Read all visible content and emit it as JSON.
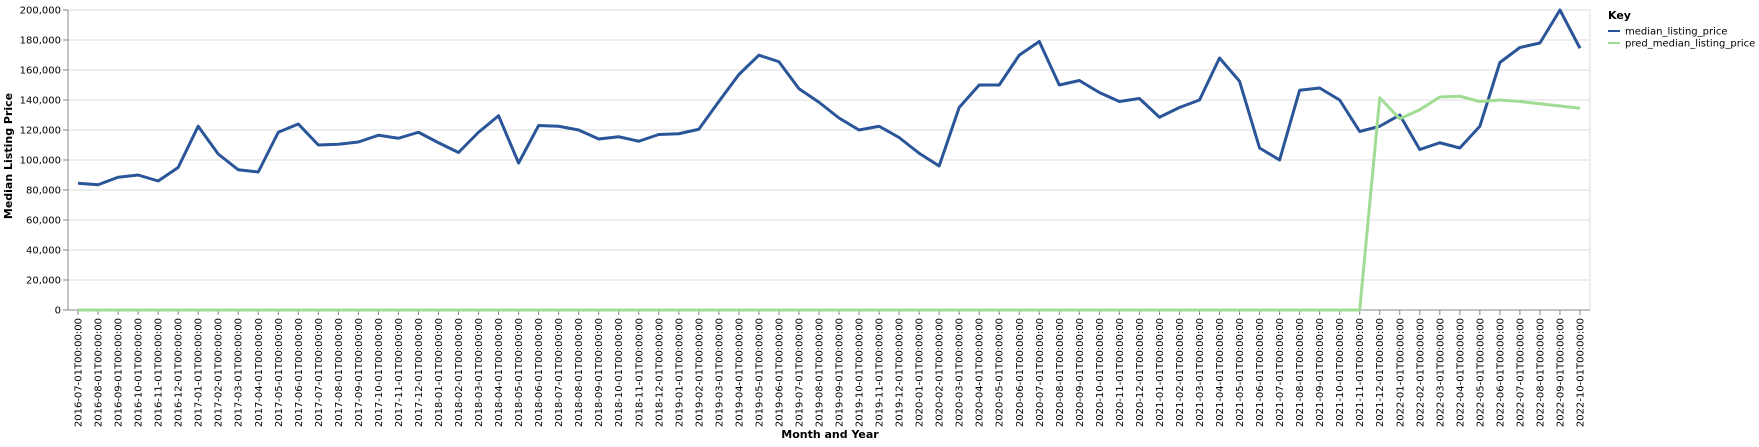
{
  "chart_data": {
    "type": "line",
    "xlabel": "Month and Year",
    "ylabel": "Median Listing Price",
    "ylim": [
      0,
      200000
    ],
    "y_ticks": [
      "0",
      "20,000",
      "40,000",
      "60,000",
      "80,000",
      "100,000",
      "120,000",
      "140,000",
      "160,000",
      "180,000",
      "200,000"
    ],
    "grid": true,
    "legend": {
      "title": "Key",
      "position": "top-right"
    },
    "categories": [
      "2016-07-01T00:00:00",
      "2016-08-01T00:00:00",
      "2016-09-01T00:00:00",
      "2016-10-01T00:00:00",
      "2016-11-01T00:00:00",
      "2016-12-01T00:00:00",
      "2017-01-01T00:00:00",
      "2017-02-01T00:00:00",
      "2017-03-01T00:00:00",
      "2017-04-01T00:00:00",
      "2017-05-01T00:00:00",
      "2017-06-01T00:00:00",
      "2017-07-01T00:00:00",
      "2017-08-01T00:00:00",
      "2017-09-01T00:00:00",
      "2017-10-01T00:00:00",
      "2017-11-01T00:00:00",
      "2017-12-01T00:00:00",
      "2018-01-01T00:00:00",
      "2018-02-01T00:00:00",
      "2018-03-01T00:00:00",
      "2018-04-01T00:00:00",
      "2018-05-01T00:00:00",
      "2018-06-01T00:00:00",
      "2018-07-01T00:00:00",
      "2018-08-01T00:00:00",
      "2018-09-01T00:00:00",
      "2018-10-01T00:00:00",
      "2018-11-01T00:00:00",
      "2018-12-01T00:00:00",
      "2019-01-01T00:00:00",
      "2019-02-01T00:00:00",
      "2019-03-01T00:00:00",
      "2019-04-01T00:00:00",
      "2019-05-01T00:00:00",
      "2019-06-01T00:00:00",
      "2019-07-01T00:00:00",
      "2019-08-01T00:00:00",
      "2019-09-01T00:00:00",
      "2019-10-01T00:00:00",
      "2019-11-01T00:00:00",
      "2019-12-01T00:00:00",
      "2020-01-01T00:00:00",
      "2020-02-01T00:00:00",
      "2020-03-01T00:00:00",
      "2020-04-01T00:00:00",
      "2020-05-01T00:00:00",
      "2020-06-01T00:00:00",
      "2020-07-01T00:00:00",
      "2020-08-01T00:00:00",
      "2020-09-01T00:00:00",
      "2020-10-01T00:00:00",
      "2020-11-01T00:00:00",
      "2020-12-01T00:00:00",
      "2021-01-01T00:00:00",
      "2021-02-01T00:00:00",
      "2021-03-01T00:00:00",
      "2021-04-01T00:00:00",
      "2021-05-01T00:00:00",
      "2021-06-01T00:00:00",
      "2021-07-01T00:00:00",
      "2021-08-01T00:00:00",
      "2021-09-01T00:00:00",
      "2021-10-01T00:00:00",
      "2021-11-01T00:00:00",
      "2021-12-01T00:00:00",
      "2022-01-01T00:00:00",
      "2022-02-01T00:00:00",
      "2022-03-01T00:00:00",
      "2022-04-01T00:00:00",
      "2022-05-01T00:00:00",
      "2022-06-01T00:00:00",
      "2022-07-01T00:00:00",
      "2022-08-01T00:00:00",
      "2022-09-01T00:00:00",
      "2022-10-01T00:00:00"
    ],
    "series": [
      {
        "name": "median_listing_price",
        "color": "#2a5599",
        "values": [
          84500,
          83500,
          88500,
          90000,
          86000,
          95000,
          122500,
          104000,
          93500,
          92000,
          118500,
          124000,
          110000,
          110500,
          112000,
          116500,
          114500,
          118500,
          111500,
          105000,
          118500,
          129500,
          98000,
          123000,
          122500,
          120000,
          114000,
          115500,
          112500,
          117000,
          117500,
          120500,
          139000,
          157000,
          169900,
          165500,
          147500,
          138500,
          128000,
          120000,
          122500,
          115000,
          104500,
          96000,
          135000,
          150000,
          150000,
          169900,
          179000,
          150000,
          153000,
          145000,
          139000,
          141000,
          128500,
          135000,
          140000,
          168000,
          152500,
          108000,
          100000,
          146500,
          148000,
          140000,
          119000,
          122500,
          130000,
          107000,
          111500,
          108000,
          122500,
          165000,
          175000,
          178000,
          200000,
          174500
        ]
      },
      {
        "name": "pred_median_listing_price",
        "color": "#a0dc94",
        "values": [
          0,
          0,
          0,
          0,
          0,
          0,
          0,
          0,
          0,
          0,
          0,
          0,
          0,
          0,
          0,
          0,
          0,
          0,
          0,
          0,
          0,
          0,
          0,
          0,
          0,
          0,
          0,
          0,
          0,
          0,
          0,
          0,
          0,
          0,
          0,
          0,
          0,
          0,
          0,
          0,
          0,
          0,
          0,
          0,
          0,
          0,
          0,
          0,
          0,
          0,
          0,
          0,
          0,
          0,
          0,
          0,
          0,
          0,
          0,
          0,
          0,
          0,
          0,
          0,
          0,
          141500,
          127500,
          133500,
          142000,
          142500,
          139000,
          140000,
          139000,
          137500,
          136000,
          134500
        ]
      }
    ]
  }
}
